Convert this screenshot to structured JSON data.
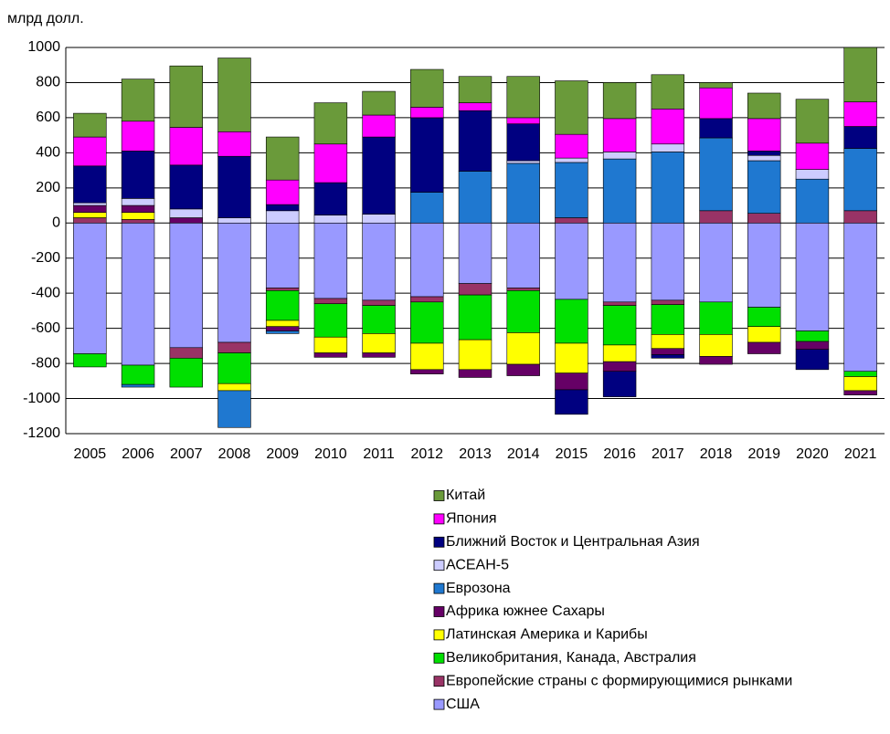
{
  "chart_data": {
    "type": "bar",
    "stacked": true,
    "y_label": "млрд долл.",
    "categories": [
      "2005",
      "2006",
      "2007",
      "2008",
      "2009",
      "2010",
      "2011",
      "2012",
      "2013",
      "2014",
      "2015",
      "2016",
      "2017",
      "2018",
      "2019",
      "2020",
      "2021"
    ],
    "ylim": [
      -1200,
      1000
    ],
    "yticks": [
      1000,
      800,
      600,
      400,
      200,
      0,
      -200,
      -400,
      -600,
      -800,
      -1000,
      -1200
    ],
    "grid": true,
    "series": [
      {
        "name": "Китай",
        "color": "#6a9a3a",
        "values": [
          135,
          240,
          350,
          420,
          245,
          235,
          135,
          215,
          150,
          235,
          305,
          205,
          195,
          30,
          145,
          250,
          310
        ]
      },
      {
        "name": "Япония",
        "color": "#ff00ff",
        "values": [
          165,
          170,
          215,
          140,
          140,
          220,
          125,
          60,
          45,
          35,
          135,
          190,
          200,
          175,
          185,
          150,
          140
        ]
      },
      {
        "name": "Ближний Восток и Центральная Азия",
        "color": "#000080",
        "values": [
          210,
          270,
          250,
          350,
          35,
          185,
          440,
          425,
          345,
          210,
          -140,
          -145,
          -20,
          110,
          25,
          -115,
          125
        ]
      },
      {
        "name": "АСЕАН-5",
        "color": "#ccccff",
        "values": [
          15,
          40,
          50,
          30,
          70,
          45,
          50,
          0,
          0,
          15,
          25,
          40,
          45,
          0,
          30,
          55,
          0
        ]
      },
      {
        "name": "Еврозона",
        "color": "#1f78d0",
        "values": [
          0,
          -15,
          0,
          -210,
          -15,
          0,
          0,
          175,
          295,
          340,
          315,
          365,
          405,
          415,
          300,
          250,
          355
        ]
      },
      {
        "name": "Африка южнее Сахары",
        "color": "#660066",
        "values": [
          40,
          40,
          30,
          0,
          -25,
          -25,
          -25,
          -25,
          -45,
          -65,
          -95,
          -55,
          -35,
          -45,
          -65,
          -45,
          -25
        ]
      },
      {
        "name": "Латинская Америка и Карибы",
        "color": "#ffff00",
        "values": [
          30,
          40,
          0,
          -40,
          -35,
          -90,
          -110,
          -150,
          -170,
          -180,
          -170,
          -95,
          -80,
          -125,
          -90,
          0,
          -80
        ]
      },
      {
        "name": "Великобритания, Канада, Австралия",
        "color": "#00e000",
        "values": [
          -75,
          -110,
          -165,
          -175,
          -170,
          -190,
          -160,
          -235,
          -255,
          -240,
          -250,
          -225,
          -170,
          -185,
          -110,
          -60,
          -30
        ]
      },
      {
        "name": "Европейские страны с формирующимися рынками",
        "color": "#993366",
        "values": [
          30,
          20,
          -60,
          -60,
          -15,
          -30,
          -30,
          -30,
          -65,
          -15,
          30,
          -20,
          -25,
          70,
          55,
          0,
          70
        ]
      },
      {
        "name": "США",
        "color": "#9999ff",
        "values": [
          -745,
          -810,
          -710,
          -680,
          -370,
          -430,
          -440,
          -420,
          -345,
          -370,
          -435,
          -450,
          -440,
          -450,
          -480,
          -615,
          -845
        ]
      }
    ]
  }
}
